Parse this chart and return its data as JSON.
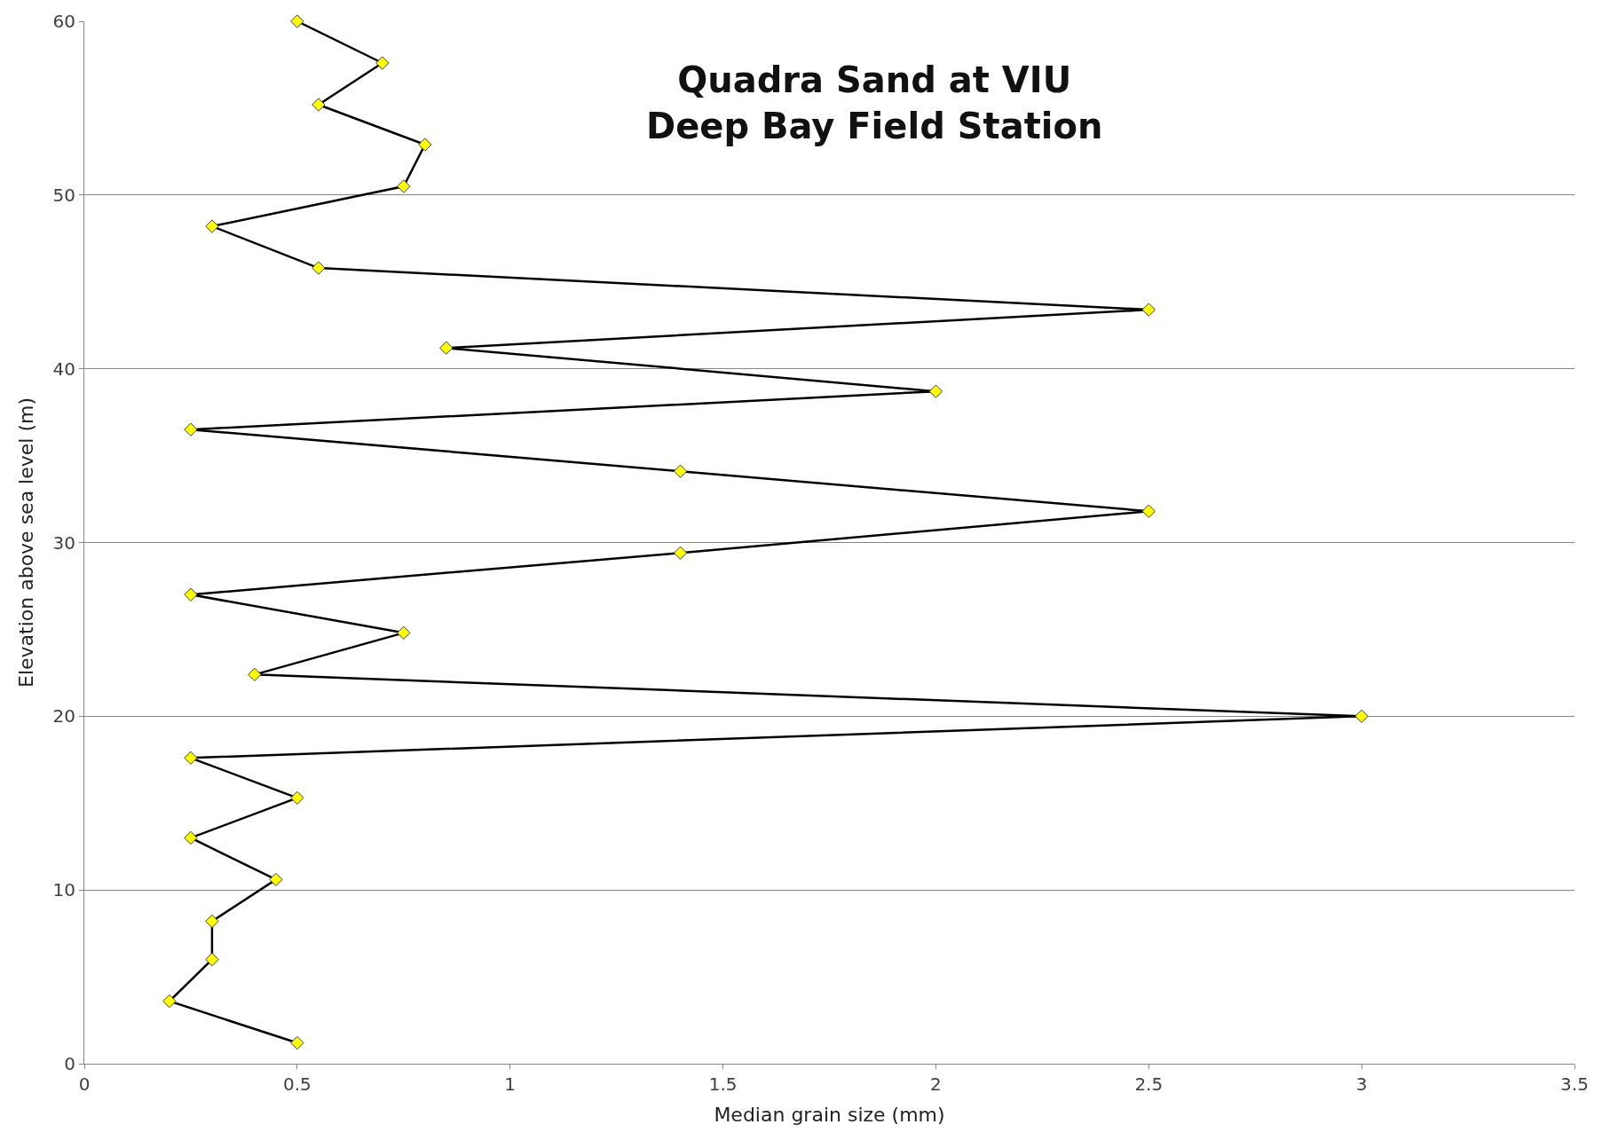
{
  "chart_data": {
    "type": "line",
    "title": "Quadra Sand at VIU\nDeep Bay Field Station",
    "xlabel": "Median grain size (mm)",
    "ylabel": "Elevation above sea level (m)",
    "series": [
      {
        "color": "#000000",
        "colors": [
          "#ffff00",
          "#ffff00",
          "#ffff00",
          "#ffff00",
          "#ffff00",
          "#ffff00",
          "#ffff00",
          "#ffff00",
          "#ffff00",
          "#ffff00",
          "#ffff00",
          "#ffff00",
          "#ffff00",
          "#ffff00",
          "#ffff00",
          "#ffff00",
          "#ffff00",
          "#ffff00",
          "#ffff00",
          "#ffff00",
          "#ffff00",
          "#ffff00",
          "#ffff00",
          "#ffff00",
          "#ffff00",
          "#ffff00"
        ],
        "x": [
          0.5,
          0.7,
          0.55,
          0.8,
          0.75,
          0.3,
          0.55,
          2.5,
          0.85,
          2.0,
          0.25,
          1.4,
          2.5,
          1.4,
          0.25,
          0.75,
          0.4,
          3.0,
          0.25,
          0.5,
          0.25,
          0.45,
          0.3,
          0.3,
          0.2,
          0.5
        ],
        "values": [
          60.0,
          57.6,
          55.2,
          52.9,
          50.5,
          48.2,
          45.8,
          43.4,
          41.2,
          38.7,
          36.5,
          34.1,
          31.8,
          29.4,
          27.0,
          24.8,
          22.4,
          20.0,
          17.6,
          15.3,
          13.0,
          10.6,
          8.2,
          6.0,
          3.6,
          1.2
        ]
      }
    ],
    "xlim": [
      0,
      3.5
    ],
    "xticks": [
      0,
      0.5,
      1,
      1.5,
      2,
      2.5,
      3,
      3.5
    ],
    "ylim": [
      0,
      60
    ],
    "yticks": [
      0,
      10,
      20,
      30,
      40,
      50,
      60
    ],
    "grid": "y",
    "marker": "diamond",
    "line_style": "solid",
    "legend": false
  }
}
